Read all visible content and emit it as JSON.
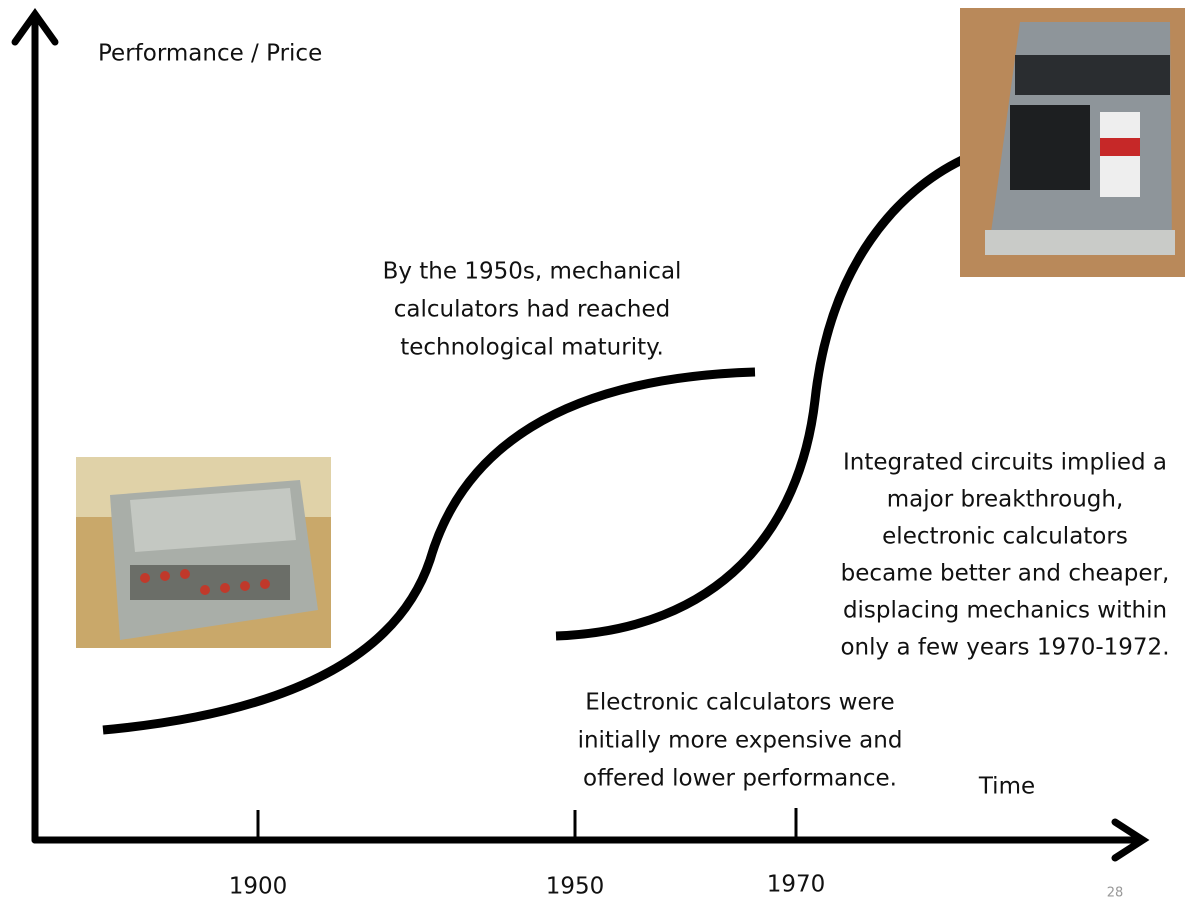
{
  "axes": {
    "y_label": "Performance / Price",
    "x_label": "Time",
    "ticks": [
      "1900",
      "1950",
      "1970"
    ]
  },
  "annotations": [
    {
      "lines": [
        "By the 1950s, mechanical",
        "calculators had reached",
        "technological maturity."
      ]
    },
    {
      "lines": [
        "Integrated circuits implied a",
        "major breakthrough,",
        "electronic calculators",
        "became better and cheaper,",
        "displacing mechanics within",
        "only a few years 1970-1972."
      ]
    },
    {
      "lines": [
        "Electronic calculators were",
        "initially more expensive and",
        "offered lower performance."
      ]
    }
  ],
  "page_number": "28"
}
